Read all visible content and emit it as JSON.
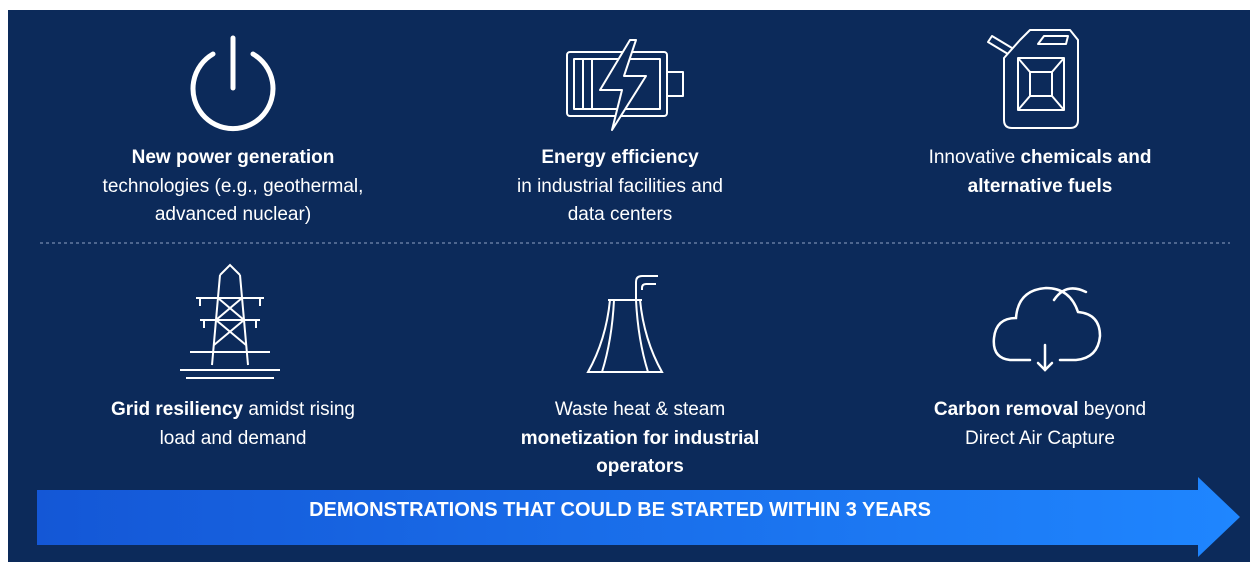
{
  "items": [
    {
      "lines": [
        [
          {
            "text": "New power generation",
            "bold": true
          }
        ],
        [
          {
            "text": "technologies (e.g., geothermal,",
            "bold": false
          }
        ],
        [
          {
            "text": "advanced nuclear)",
            "bold": false
          }
        ]
      ]
    },
    {
      "lines": [
        [
          {
            "text": "Energy efficiency",
            "bold": true
          }
        ],
        [
          {
            "text": "in industrial facilities and",
            "bold": false
          }
        ],
        [
          {
            "text": "data centers",
            "bold": false
          }
        ]
      ]
    },
    {
      "lines": [
        [
          {
            "text": "Innovative ",
            "bold": false
          },
          {
            "text": "chemicals and",
            "bold": true
          }
        ],
        [
          {
            "text": "alternative fuels",
            "bold": true
          }
        ]
      ]
    },
    {
      "lines": [
        [
          {
            "text": "Grid resiliency",
            "bold": true
          },
          {
            "text": " amidst rising",
            "bold": false
          }
        ],
        [
          {
            "text": "load and demand",
            "bold": false
          }
        ]
      ]
    },
    {
      "lines": [
        [
          {
            "text": "Waste heat & steam",
            "bold": false
          }
        ],
        [
          {
            "text": "monetization for industrial",
            "bold": true
          }
        ],
        [
          {
            "text": "operators",
            "bold": true
          }
        ]
      ]
    },
    {
      "lines": [
        [
          {
            "text": "Carbon removal",
            "bold": true
          },
          {
            "text": " beyond",
            "bold": false
          }
        ],
        [
          {
            "text": "Direct Air Capture",
            "bold": false
          }
        ]
      ]
    }
  ],
  "arrow": {
    "text": "DEMONSTRATIONS THAT COULD BE STARTED WITHIN 3 YEARS"
  }
}
